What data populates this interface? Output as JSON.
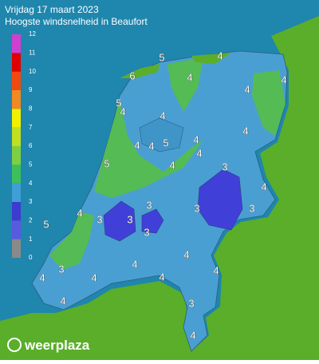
{
  "header": {
    "title": "Vrijdag 17 maart 2023",
    "subtitle": "Hoogste windsnelheid in Beaufort"
  },
  "legend": {
    "levels": [
      0,
      1,
      2,
      3,
      4,
      5,
      6,
      7,
      8,
      9,
      10,
      11,
      12
    ],
    "colors": [
      "#8a8a8a",
      "#5a5ae0",
      "#3c3cd0",
      "#3f9fd6",
      "#3fbf5a",
      "#7fd040",
      "#bfe020",
      "#f0f000",
      "#f08a20",
      "#f04a10",
      "#e00000",
      "#d040d0"
    ]
  },
  "map": {
    "labels": [
      "5",
      "4",
      "6",
      "4",
      "4",
      "5",
      "4",
      "4",
      "4",
      "4",
      "4",
      "4",
      "5",
      "4",
      "4",
      "5",
      "4",
      "3",
      "4",
      "3",
      "4",
      "3",
      "3",
      "3",
      "5",
      "3",
      "3",
      "4",
      "4",
      "4",
      "3",
      "4",
      "4",
      "4",
      "4",
      "3",
      "4"
    ]
  },
  "footer": {
    "logo": "weerplaza"
  }
}
